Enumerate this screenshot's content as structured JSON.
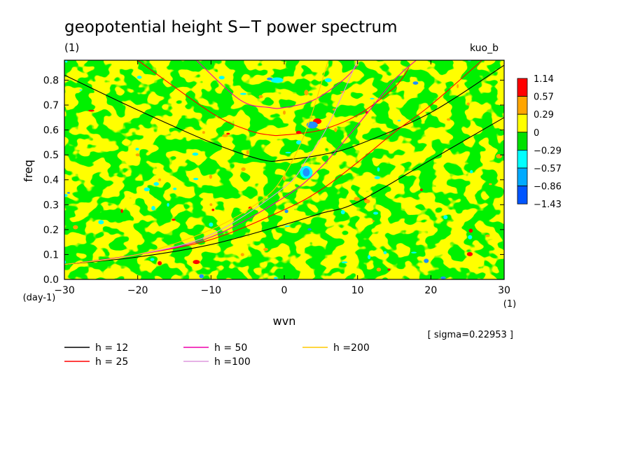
{
  "chart_data": {
    "type": "heatmap",
    "title": "geopotential height S−T power spectrum",
    "subtitle": "(1)",
    "top_right_label": "kuo_b",
    "xlabel": "wvn",
    "x_unit": "(1)",
    "ylabel": "freq",
    "y_unit": "(day-1)",
    "xlim": [
      -30,
      30
    ],
    "ylim": [
      0,
      0.88
    ],
    "x_ticks": [
      -30,
      -20,
      -10,
      0,
      10,
      20,
      30
    ],
    "y_ticks": [
      0.0,
      0.1,
      0.2,
      0.3,
      0.4,
      0.5,
      0.6,
      0.7,
      0.8
    ],
    "sigma_label": "[ sigma=0.22953 ]",
    "colorbar": {
      "labels": [
        "1.14",
        "0.57",
        "0.29",
        "0",
        "−0.29",
        "−0.57",
        "−0.86",
        "−1.43"
      ],
      "colors": [
        "#ff0000",
        "#ffa500",
        "#ffff00",
        "#00e000",
        "#00ffff",
        "#00aaff",
        "#0055ff"
      ]
    },
    "field_colors": {
      "background": "#ffff00",
      "green": "#00e000",
      "cyan": "#00ffff",
      "blue": "#1e90ff",
      "orange": "#ffa500",
      "red": "#ff0000"
    },
    "legend": [
      {
        "label": "h = 12",
        "color": "#000000"
      },
      {
        "label": "h = 25",
        "color": "#ff0000"
      },
      {
        "label": "h = 50",
        "color": "#ee00aa"
      },
      {
        "label": "h =100",
        "color": "#dd99dd"
      },
      {
        "label": "h =200",
        "color": "#ffc800"
      }
    ],
    "series": [
      {
        "name": "h = 12",
        "color": "#000000",
        "x": [
          -30,
          -20,
          -10,
          0,
          5,
          10,
          20,
          30
        ],
        "y": [
          0.06,
          0.09,
          0.14,
          0.22,
          0.265,
          0.31,
          0.48,
          0.65
        ]
      },
      {
        "name": "h = 12",
        "color": "#000000",
        "x": [
          -30,
          -20,
          -10,
          -3,
          0,
          5,
          10,
          20,
          30
        ],
        "y": [
          0.82,
          0.68,
          0.55,
          0.48,
          0.48,
          0.5,
          0.54,
          0.67,
          0.86
        ]
      },
      {
        "name": "h = 25",
        "color": "#ff0000",
        "x": [
          -30,
          -20,
          -10,
          0,
          5,
          10,
          15,
          20,
          27
        ],
        "y": [
          0.06,
          0.1,
          0.16,
          0.28,
          0.36,
          0.47,
          0.59,
          0.7,
          0.88
        ]
      },
      {
        "name": "h = 25",
        "color": "#ff0000",
        "x": [
          -20,
          -10,
          -5,
          -2,
          0,
          5,
          10,
          15,
          17
        ],
        "y": [
          0.88,
          0.67,
          0.6,
          0.58,
          0.58,
          0.6,
          0.66,
          0.77,
          0.85
        ]
      },
      {
        "name": "h = 50",
        "color": "#ee00aa",
        "x": [
          -30,
          -20,
          -10,
          0,
          5,
          10,
          15,
          18
        ],
        "y": [
          0.06,
          0.1,
          0.17,
          0.33,
          0.45,
          0.62,
          0.8,
          0.88
        ]
      },
      {
        "name": "h = 50",
        "color": "#ee00aa",
        "x": [
          -12,
          -6,
          -2,
          0,
          4,
          8,
          10
        ],
        "y": [
          0.88,
          0.72,
          0.69,
          0.69,
          0.72,
          0.8,
          0.86
        ]
      },
      {
        "name": "h =100",
        "color": "#dd99dd",
        "x": [
          -30,
          -20,
          -10,
          0,
          3,
          6,
          10
        ],
        "y": [
          0.06,
          0.1,
          0.18,
          0.37,
          0.48,
          0.62,
          0.88
        ]
      },
      {
        "name": "h =200",
        "color": "#ffc800",
        "x": [
          -30,
          -20,
          -10,
          -3,
          0,
          3,
          6
        ],
        "y": [
          0.06,
          0.1,
          0.2,
          0.32,
          0.42,
          0.6,
          0.88
        ]
      }
    ]
  }
}
